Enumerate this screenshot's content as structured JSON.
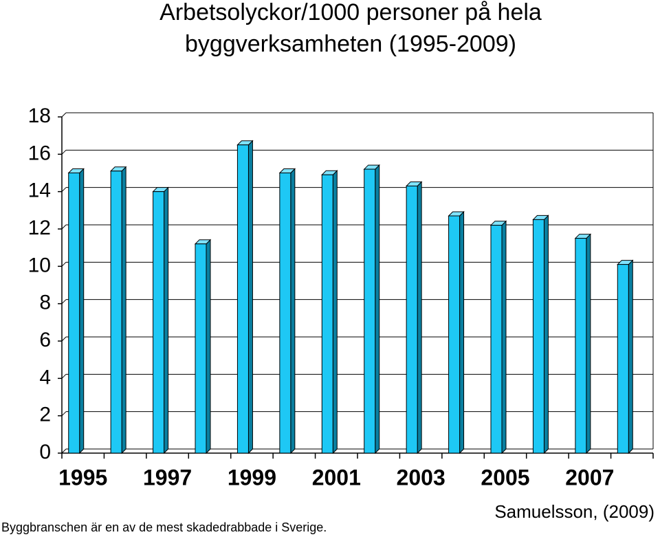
{
  "chart_data": {
    "type": "bar",
    "title": "Arbetsolyckor/1000 personer  på hela",
    "subtitle": "byggverksamheten (1995-2009)",
    "categories": [
      "1995",
      null,
      "1997",
      null,
      "1999",
      null,
      "2001",
      null,
      "2003",
      null,
      "2005",
      null,
      "2007",
      null
    ],
    "values": [
      15.0,
      15.1,
      14.0,
      11.2,
      16.5,
      15.0,
      14.9,
      15.2,
      14.3,
      12.7,
      12.2,
      12.5,
      11.5,
      10.1
    ],
    "color": "#1ec8f5",
    "ylim": [
      0,
      18
    ],
    "yticks": [
      0,
      2,
      4,
      6,
      8,
      10,
      12,
      14,
      16,
      18
    ],
    "grid": true,
    "source": "Samuelsson, (2009)",
    "footnote": "Byggbranschen är en av de mest skadedrabbade i Sverige."
  }
}
